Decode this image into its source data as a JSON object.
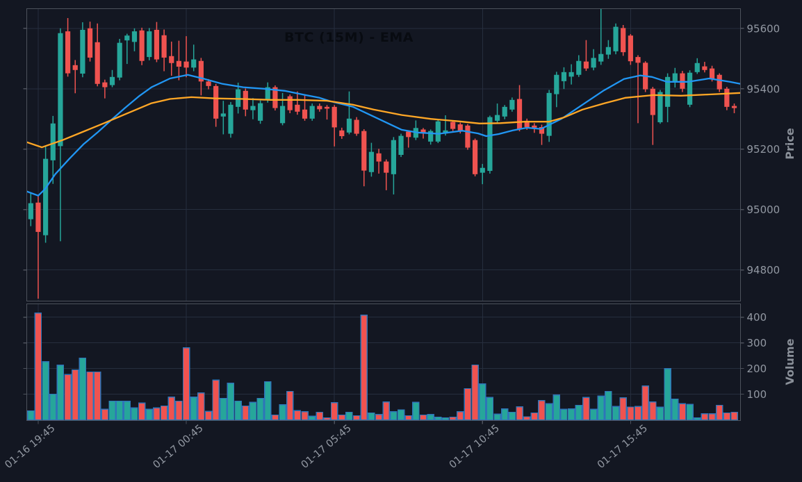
{
  "colors": {
    "background": "#131722",
    "panel_border": "#4d525c",
    "grid": "#262e3e",
    "tick_text": "#9298a2",
    "axis_label_text": "#8a9099",
    "title_text": "#080b11",
    "candle_up": "#26a69a",
    "candle_down": "#ef5350",
    "ema_fast": "#2196f3",
    "ema_slow": "#ffa726",
    "volume_edge": "#2f74b9"
  },
  "chart_data": {
    "type": "candlestick",
    "title": "BTC (15M) - EMA",
    "legend_position": "none",
    "grid": true,
    "price_axis": {
      "label": "Price",
      "side": "right",
      "ticks": [
        95600,
        95400,
        95200,
        95000,
        94800
      ],
      "range": [
        94697,
        95665
      ]
    },
    "volume_axis": {
      "label": "Volume",
      "side": "right",
      "ticks": [
        400,
        300,
        200,
        100
      ],
      "range": [
        0,
        452
      ]
    },
    "x_axis": {
      "tick_labels": [
        "01-16 19:45",
        "01-17 00:45",
        "01-17 05:45",
        "01-17 10:45",
        "01-17 15:45"
      ],
      "tick_indices": [
        1,
        21,
        41,
        61,
        81
      ]
    },
    "candles_columns": [
      "open",
      "high",
      "low",
      "close",
      "volume"
    ],
    "candles": [
      [
        94968,
        95055,
        94945,
        95021,
        35
      ],
      [
        95023,
        95048,
        94705,
        94926,
        416
      ],
      [
        94915,
        95210,
        94890,
        95168,
        227
      ],
      [
        95163,
        95310,
        95085,
        95285,
        100
      ],
      [
        95210,
        95600,
        94895,
        95584,
        213
      ],
      [
        95590,
        95634,
        95440,
        95451,
        177
      ],
      [
        95478,
        95495,
        95385,
        95462,
        195
      ],
      [
        95450,
        95620,
        95438,
        95595,
        241
      ],
      [
        95600,
        95622,
        95490,
        95503,
        187
      ],
      [
        95554,
        95616,
        95408,
        95416,
        187
      ],
      [
        95421,
        95430,
        95368,
        95405,
        41
      ],
      [
        95412,
        95462,
        95405,
        95439,
        73
      ],
      [
        95437,
        95565,
        95428,
        95552,
        73
      ],
      [
        95560,
        95582,
        95482,
        95576,
        72
      ],
      [
        95555,
        95600,
        95524,
        95590,
        47
      ],
      [
        95593,
        95602,
        95478,
        95492,
        66
      ],
      [
        95505,
        95601,
        95494,
        95590,
        41
      ],
      [
        95595,
        95621,
        95488,
        95497,
        47
      ],
      [
        95577,
        95596,
        95458,
        95503,
        54
      ],
      [
        95508,
        95556,
        95443,
        95485,
        89
      ],
      [
        95492,
        95559,
        95428,
        95473,
        73
      ],
      [
        95490,
        95574,
        95438,
        95470,
        281
      ],
      [
        95470,
        95546,
        95458,
        95497,
        89
      ],
      [
        95492,
        95502,
        95378,
        95424,
        105
      ],
      [
        95424,
        95432,
        95398,
        95409,
        33
      ],
      [
        95409,
        95416,
        95274,
        95301,
        155
      ],
      [
        95308,
        95360,
        95249,
        95318,
        84
      ],
      [
        95251,
        95356,
        95238,
        95347,
        143
      ],
      [
        95340,
        95420,
        95318,
        95398,
        73
      ],
      [
        95393,
        95401,
        95309,
        95331,
        54
      ],
      [
        95329,
        95369,
        95299,
        95343,
        68
      ],
      [
        95294,
        95361,
        95284,
        95352,
        84
      ],
      [
        95366,
        95421,
        95354,
        95405,
        149
      ],
      [
        95405,
        95411,
        95328,
        95336,
        19
      ],
      [
        95286,
        95386,
        95279,
        95343,
        59
      ],
      [
        95375,
        95381,
        95319,
        95329,
        111
      ],
      [
        95347,
        95391,
        95314,
        95324,
        36
      ],
      [
        95331,
        95379,
        95294,
        95301,
        32
      ],
      [
        95301,
        95351,
        95294,
        95343,
        14
      ],
      [
        95343,
        95351,
        95324,
        95332,
        30
      ],
      [
        95340,
        95346,
        95298,
        95334,
        8
      ],
      [
        95340,
        95346,
        95209,
        95272,
        67
      ],
      [
        95262,
        95271,
        95234,
        95243,
        19
      ],
      [
        95255,
        95391,
        95249,
        95301,
        30
      ],
      [
        95297,
        95306,
        95244,
        95251,
        16
      ],
      [
        95260,
        95266,
        95077,
        95129,
        408
      ],
      [
        95124,
        95221,
        95109,
        95191,
        27
      ],
      [
        95186,
        95201,
        95119,
        95159,
        21
      ],
      [
        95159,
        95166,
        95064,
        95122,
        70
      ],
      [
        95117,
        95240,
        95050,
        95230,
        32
      ],
      [
        95181,
        95251,
        95174,
        95244,
        39
      ],
      [
        95258,
        95262,
        95205,
        95240,
        16
      ],
      [
        95238,
        95295,
        95230,
        95270,
        68
      ],
      [
        95265,
        95270,
        95235,
        95252,
        19
      ],
      [
        95225,
        95265,
        95215,
        95260,
        21
      ],
      [
        95225,
        95297,
        95220,
        95292,
        11
      ],
      [
        95252,
        95312,
        95245,
        95262,
        8
      ],
      [
        95290,
        95295,
        95260,
        95267,
        11
      ],
      [
        95282,
        95288,
        95252,
        95260,
        32
      ],
      [
        95278,
        95283,
        95198,
        95205,
        122
      ],
      [
        95230,
        95235,
        95110,
        95117,
        214
      ],
      [
        95122,
        95151,
        95084,
        95138,
        140
      ],
      [
        95128,
        95311,
        95119,
        95306,
        87
      ],
      [
        95294,
        95351,
        95284,
        95313,
        22
      ],
      [
        95308,
        95346,
        95299,
        95340,
        43
      ],
      [
        95331,
        95371,
        95324,
        95363,
        30
      ],
      [
        95366,
        95412,
        95259,
        95267,
        51
      ],
      [
        95294,
        95301,
        95264,
        95273,
        12
      ],
      [
        95278,
        95286,
        95254,
        95271,
        27
      ],
      [
        95273,
        95281,
        95214,
        95251,
        75
      ],
      [
        95244,
        95396,
        95224,
        95386,
        63
      ],
      [
        95382,
        95456,
        95339,
        95446,
        97
      ],
      [
        95425,
        95471,
        95399,
        95455,
        41
      ],
      [
        95440,
        95481,
        95414,
        95455,
        43
      ],
      [
        95446,
        95511,
        95439,
        95492,
        57
      ],
      [
        95490,
        95561,
        95459,
        95467,
        87
      ],
      [
        95470,
        95531,
        95461,
        95502,
        41
      ],
      [
        95490,
        95664,
        95479,
        95515,
        93
      ],
      [
        95513,
        95561,
        95499,
        95538,
        111
      ],
      [
        95524,
        95616,
        95514,
        95605,
        52
      ],
      [
        95601,
        95611,
        95509,
        95521,
        86
      ],
      [
        95576,
        95581,
        95479,
        95491,
        50
      ],
      [
        95505,
        95511,
        95286,
        95486,
        52
      ],
      [
        95486,
        95491,
        95389,
        95398,
        132
      ],
      [
        95400,
        95406,
        95214,
        95313,
        70
      ],
      [
        95289,
        95396,
        95284,
        95389,
        49
      ],
      [
        95340,
        95451,
        95289,
        95439,
        200
      ],
      [
        95424,
        95469,
        95404,
        95451,
        81
      ],
      [
        95451,
        95459,
        95389,
        95400,
        63
      ],
      [
        95347,
        95461,
        95339,
        95453,
        60
      ],
      [
        95455,
        95501,
        95449,
        95485,
        8
      ],
      [
        95474,
        95489,
        95454,
        95462,
        24
      ],
      [
        95467,
        95476,
        95424,
        95432,
        24
      ],
      [
        95446,
        95451,
        95389,
        95398,
        57
      ],
      [
        95400,
        95406,
        95329,
        95340,
        27
      ],
      [
        95343,
        95351,
        95319,
        95336,
        30
      ]
    ],
    "ema_fast": {
      "name": "EMA fast",
      "points": [
        [
          -0.7,
          95060
        ],
        [
          1.0,
          95046
        ],
        [
          1.9,
          95067
        ],
        [
          3.3,
          95117
        ],
        [
          5.2,
          95168
        ],
        [
          7.1,
          95216
        ],
        [
          9.0,
          95255
        ],
        [
          10.9,
          95297
        ],
        [
          12.7,
          95336
        ],
        [
          14.6,
          95375
        ],
        [
          16.3,
          95405
        ],
        [
          18.8,
          95434
        ],
        [
          21.2,
          95446
        ],
        [
          23.5,
          95432
        ],
        [
          25.9,
          95416
        ],
        [
          28.7,
          95405
        ],
        [
          31.5,
          95400
        ],
        [
          34.3,
          95393
        ],
        [
          37.1,
          95379
        ],
        [
          39.0,
          95370
        ],
        [
          40.4,
          95359
        ],
        [
          43.5,
          95340
        ],
        [
          46.3,
          95308
        ],
        [
          50.1,
          95264
        ],
        [
          52.2,
          95255
        ],
        [
          55.1,
          95251
        ],
        [
          58.3,
          95261
        ],
        [
          60.4,
          95252
        ],
        [
          61.5,
          95243
        ],
        [
          63.2,
          95250
        ],
        [
          65.1,
          95262
        ],
        [
          67.0,
          95271
        ],
        [
          68.9,
          95267
        ],
        [
          71.7,
          95301
        ],
        [
          74.5,
          95347
        ],
        [
          77.3,
          95393
        ],
        [
          80.1,
          95432
        ],
        [
          82.3,
          95444
        ],
        [
          83.9,
          95439
        ],
        [
          85.9,
          95423
        ],
        [
          88.8,
          95423
        ],
        [
          91.6,
          95434
        ],
        [
          94.4,
          95423
        ],
        [
          95.9,
          95416
        ]
      ]
    },
    "ema_slow": {
      "name": "EMA slow",
      "points": [
        [
          -0.7,
          95223
        ],
        [
          1.5,
          95206
        ],
        [
          4.3,
          95230
        ],
        [
          7.1,
          95258
        ],
        [
          9.9,
          95286
        ],
        [
          12.7,
          95315
        ],
        [
          16.3,
          95352
        ],
        [
          18.8,
          95366
        ],
        [
          21.7,
          95372
        ],
        [
          24.9,
          95368
        ],
        [
          28.7,
          95366
        ],
        [
          32.4,
          95363
        ],
        [
          36.2,
          95363
        ],
        [
          40.0,
          95360
        ],
        [
          43.5,
          95347
        ],
        [
          46.3,
          95331
        ],
        [
          50.1,
          95313
        ],
        [
          54.0,
          95300
        ],
        [
          57.8,
          95292
        ],
        [
          60.6,
          95285
        ],
        [
          63.4,
          95286
        ],
        [
          66.7,
          95291
        ],
        [
          70.0,
          95291
        ],
        [
          72.0,
          95305
        ],
        [
          74.5,
          95331
        ],
        [
          77.5,
          95352
        ],
        [
          80.3,
          95370
        ],
        [
          84.1,
          95379
        ],
        [
          87.8,
          95377
        ],
        [
          91.6,
          95381
        ],
        [
          95.9,
          95386
        ]
      ]
    }
  }
}
